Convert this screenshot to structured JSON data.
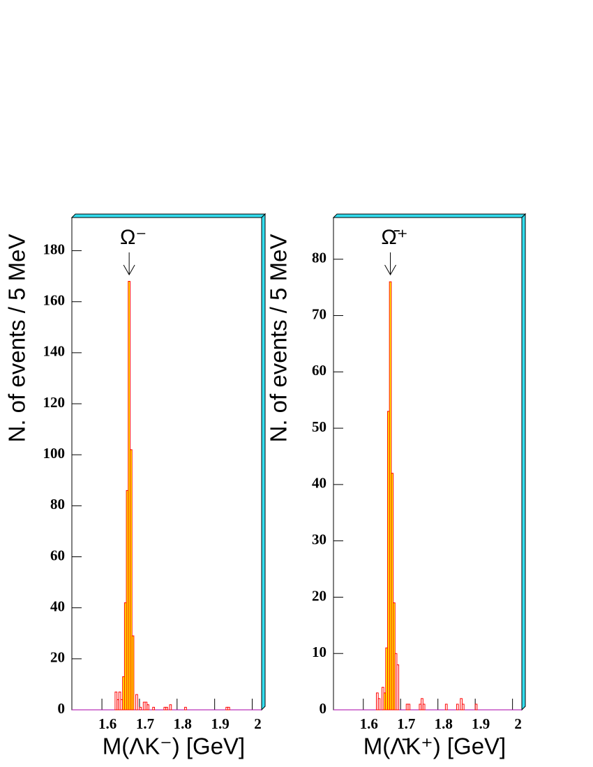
{
  "chart_data": [
    {
      "type": "histogram",
      "x_label": "M(ΛK⁻)   [GeV]",
      "y_label": "N. of events / 5 MeV",
      "annotation": "Ω⁻",
      "bins": [
        1.635,
        1.64,
        1.645,
        1.65,
        1.655,
        1.66,
        1.665,
        1.67,
        1.675,
        1.68,
        1.685,
        1.69,
        1.695,
        1.7,
        1.705,
        1.71,
        1.715,
        1.72,
        1.725,
        1.73,
        1.735,
        1.74,
        1.745,
        1.75,
        1.755,
        1.76,
        1.765,
        1.77,
        1.775,
        1.78,
        1.785,
        1.79,
        1.795,
        1.8,
        1.805,
        1.81,
        1.815,
        1.82,
        1.825,
        1.83,
        1.835,
        1.84,
        1.845,
        1.85,
        1.855,
        1.86,
        1.865,
        1.87,
        1.875,
        1.88,
        1.885,
        1.89,
        1.895,
        1.9,
        1.905,
        1.91,
        1.915,
        1.92,
        1.925,
        1.93,
        1.935,
        1.94,
        1.945,
        1.95,
        1.955
      ],
      "values": [
        7,
        4,
        7,
        4,
        13,
        42,
        86,
        168,
        102,
        29,
        0,
        6,
        0,
        1,
        0,
        3,
        3,
        2,
        0,
        0,
        1,
        0,
        0,
        0,
        0,
        0,
        1,
        1,
        0,
        2,
        0,
        0,
        0,
        0,
        0,
        0,
        0,
        1,
        0,
        0,
        0,
        0,
        0,
        0,
        0,
        0,
        0,
        0,
        0,
        0,
        0,
        0,
        0,
        0,
        0,
        0,
        0,
        0,
        0,
        1,
        1,
        0,
        0,
        0
      ],
      "color": "#ff0000",
      "fill_color": "#ffff00",
      "fill_range": [
        1.655,
        1.685
      ],
      "xlim": [
        1.52,
        2.025
      ],
      "xticks": [
        1.6,
        1.7,
        1.8,
        1.9,
        2
      ],
      "ylim": [
        0,
        193
      ],
      "yticks": [
        0,
        20,
        40,
        60,
        80,
        100,
        120,
        140,
        160,
        180
      ]
    },
    {
      "type": "histogram",
      "x_label": "M(Λ̄K⁺)   [GeV]",
      "y_label": "N. of events / 5 MeV",
      "annotation": "Ω̄⁺",
      "bins": [
        1.635,
        1.64,
        1.645,
        1.65,
        1.655,
        1.66,
        1.665,
        1.67,
        1.675,
        1.68,
        1.685,
        1.69,
        1.695,
        1.7,
        1.705,
        1.71,
        1.715,
        1.72,
        1.725,
        1.73,
        1.735,
        1.74,
        1.745,
        1.75,
        1.755,
        1.76,
        1.765,
        1.77,
        1.775,
        1.78,
        1.785,
        1.79,
        1.795,
        1.8,
        1.805,
        1.81,
        1.815,
        1.82,
        1.825,
        1.83,
        1.835,
        1.84,
        1.845,
        1.85,
        1.855,
        1.86,
        1.865,
        1.87,
        1.875,
        1.88,
        1.885,
        1.89,
        1.895,
        1.9,
        1.905,
        1.91,
        1.915,
        1.92,
        1.925,
        1.93,
        1.935,
        1.94,
        1.945,
        1.95,
        1.955
      ],
      "values": [
        3,
        2,
        0,
        4,
        3,
        11,
        53,
        76,
        42,
        19,
        10,
        8,
        0,
        0,
        0,
        0,
        1,
        1,
        0,
        0,
        0,
        0,
        0,
        1,
        2,
        1,
        0,
        0,
        0,
        0,
        0,
        0,
        0,
        0,
        0,
        0,
        0,
        1,
        0,
        0,
        0,
        0,
        0,
        1,
        0,
        2,
        1,
        0,
        0,
        0,
        0,
        0,
        0,
        1,
        0,
        0,
        0,
        0,
        0,
        0,
        0,
        0,
        0,
        0
      ],
      "color": "#ff0000",
      "fill_color": "#ffff00",
      "fill_range": [
        1.655,
        1.685
      ],
      "xlim": [
        1.52,
        2.025
      ],
      "xticks": [
        1.6,
        1.7,
        1.8,
        1.9,
        2
      ],
      "ylim": [
        0,
        87.4
      ],
      "yticks": [
        0,
        10,
        20,
        30,
        40,
        50,
        60,
        70,
        80
      ]
    }
  ]
}
